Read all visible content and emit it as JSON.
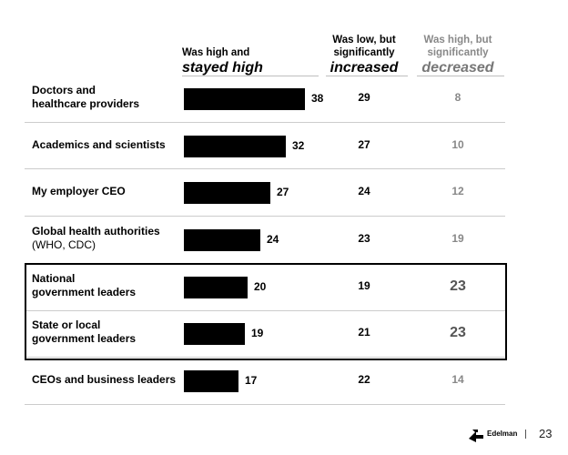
{
  "headers": {
    "high": {
      "line1": "Was high and",
      "big": "stayed high"
    },
    "increased": {
      "line1": "Was low, but",
      "line2": "significantly",
      "big": "increased"
    },
    "decreased": {
      "line1": "Was high, but",
      "line2": "significantly",
      "big": "decreased"
    }
  },
  "chart_data": {
    "type": "bar",
    "orientation": "horizontal",
    "xlim": [
      0,
      40
    ],
    "categories": [
      "Doctors and healthcare providers",
      "Academics and scientists",
      "My employer CEO",
      "Global health authorities (WHO, CDC)",
      "National government leaders",
      "State or local government leaders",
      "CEOs and business leaders"
    ],
    "series": [
      {
        "name": "Was high and stayed high",
        "values": [
          38,
          32,
          27,
          24,
          20,
          19,
          17
        ]
      },
      {
        "name": "Was low, but significantly increased",
        "values": [
          29,
          27,
          24,
          23,
          19,
          21,
          22
        ]
      },
      {
        "name": "Was high, but significantly decreased",
        "values": [
          8,
          10,
          12,
          19,
          23,
          23,
          14
        ]
      }
    ],
    "highlighted_categories": [
      "National government leaders",
      "State or local government leaders"
    ],
    "bar_color": "#000000",
    "decreased_color": "#888888"
  },
  "rows": [
    {
      "line1": "Doctors and",
      "line2": "healthcare providers",
      "sub": ""
    },
    {
      "line1": "Academics and scientists",
      "line2": "",
      "sub": ""
    },
    {
      "line1": "My employer CEO",
      "line2": "",
      "sub": ""
    },
    {
      "line1": "Global health authorities",
      "line2": "",
      "sub": "(WHO, CDC)"
    },
    {
      "line1": "National",
      "line2": "government leaders",
      "sub": ""
    },
    {
      "line1": "State or local",
      "line2": "government leaders",
      "sub": ""
    },
    {
      "line1": "CEOs and business leaders",
      "line2": "",
      "sub": ""
    }
  ],
  "footer": {
    "brand": "Edelman",
    "page": "23"
  }
}
